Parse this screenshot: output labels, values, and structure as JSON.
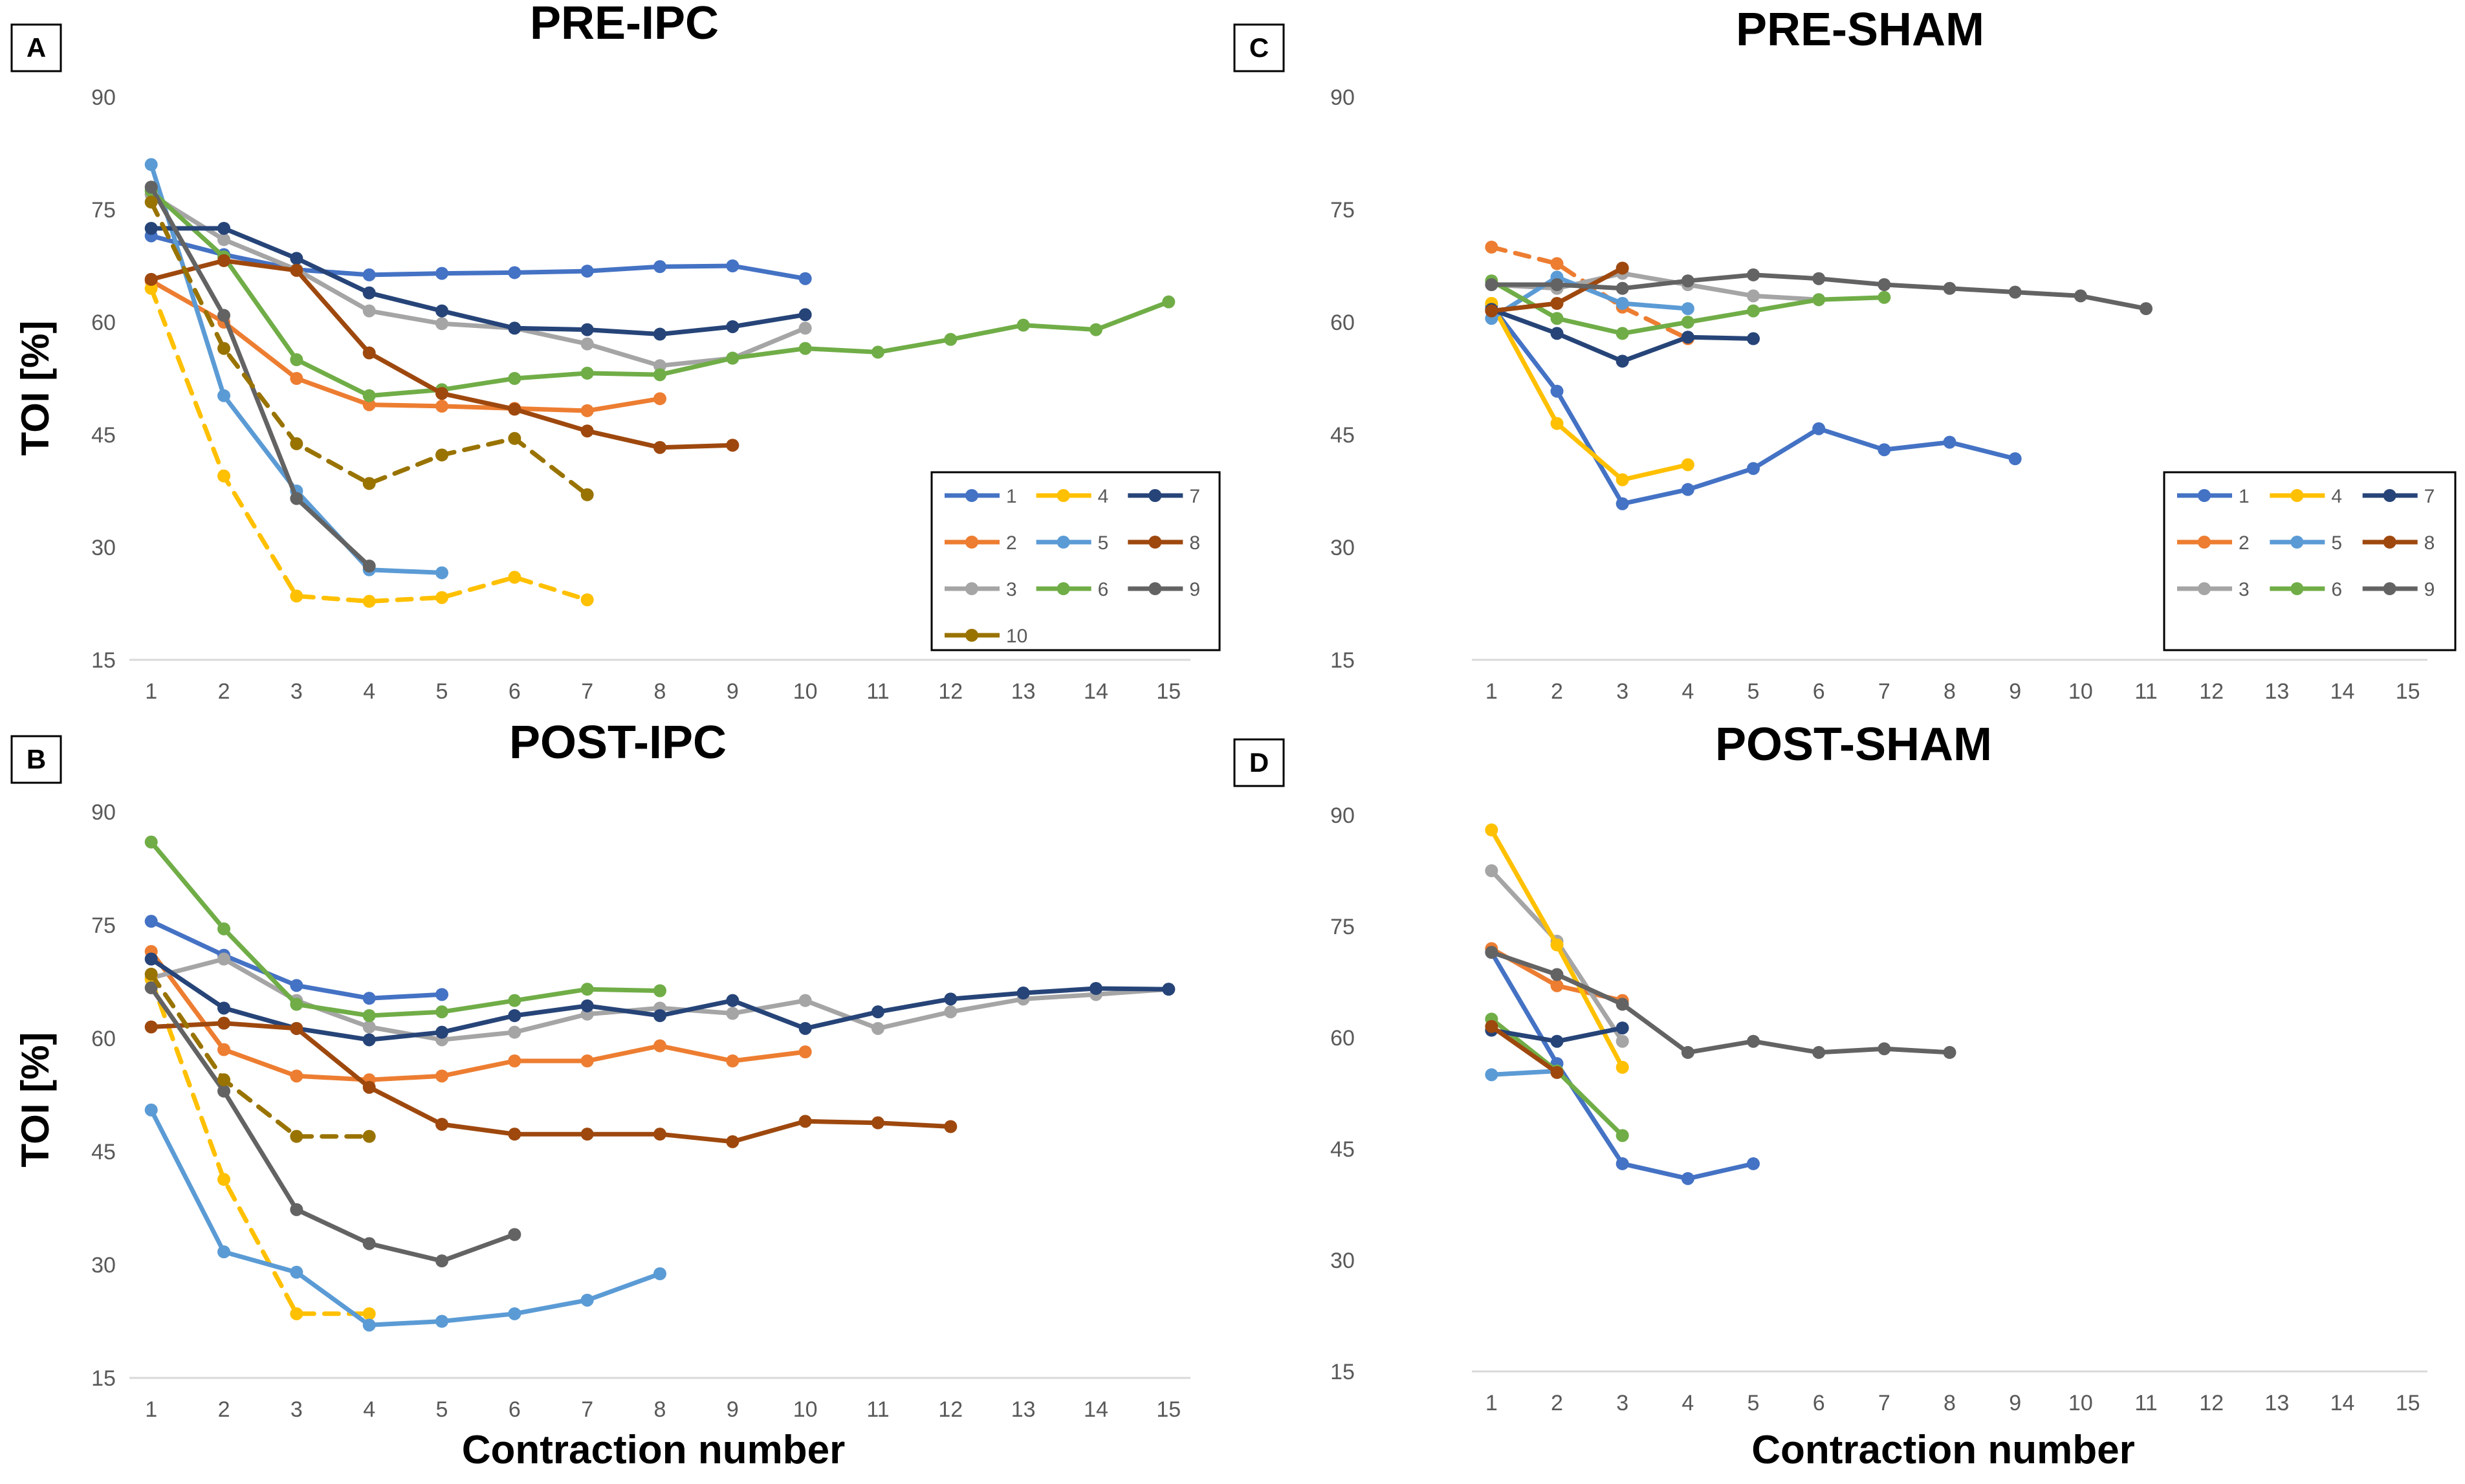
{
  "series_styles": [
    {
      "name": "1",
      "color": "#4472C4",
      "dash": false
    },
    {
      "name": "2",
      "color": "#ED7D31",
      "dash": false
    },
    {
      "name": "3",
      "color": "#A5A5A5",
      "dash": false
    },
    {
      "name": "4",
      "color": "#FFC000",
      "dash": false
    },
    {
      "name": "5",
      "color": "#5B9BD5",
      "dash": false
    },
    {
      "name": "6",
      "color": "#70AD47",
      "dash": false
    },
    {
      "name": "7",
      "color": "#264478",
      "dash": false
    },
    {
      "name": "8",
      "color": "#9E480E",
      "dash": false
    },
    {
      "name": "9",
      "color": "#636363",
      "dash": false
    },
    {
      "name": "10",
      "color": "#997300",
      "dash": false
    }
  ],
  "chart_data": [
    {
      "panel": "A",
      "type": "line",
      "title": "PRE-IPC",
      "xlabel": "",
      "ylabel": "TOI [%]",
      "ylim": [
        15,
        90
      ],
      "yticks": [
        "15",
        "30",
        "45",
        "60",
        "75",
        "90"
      ],
      "xticks": [
        "1",
        "2",
        "3",
        "4",
        "5",
        "6",
        "7",
        "8",
        "9",
        "10",
        "11",
        "12",
        "13",
        "14",
        "15"
      ],
      "legend": [
        "1",
        "4",
        "7",
        "2",
        "5",
        "8",
        "3",
        "6",
        "9",
        "10"
      ],
      "series": [
        {
          "name": "1",
          "values": [
            71.5,
            69,
            67,
            66.3,
            66.5,
            66.6,
            66.8,
            67.4,
            67.5,
            65.8
          ]
        },
        {
          "name": "2",
          "values": [
            65.5,
            60,
            52.5,
            49,
            48.8,
            48.5,
            48.2,
            49.8
          ]
        },
        {
          "name": "3",
          "values": [
            77,
            71,
            67,
            61.5,
            59.8,
            59.2,
            57.1,
            54.2,
            55.2,
            59.2
          ]
        },
        {
          "name": "4",
          "values": [
            64.5,
            39.5,
            23.5,
            22.8,
            23.3,
            26,
            23
          ],
          "dash": true
        },
        {
          "name": "5",
          "values": [
            81,
            50.2,
            37.5,
            27,
            26.6
          ]
        },
        {
          "name": "6",
          "values": [
            77.5,
            68.7,
            55,
            50.2,
            51,
            52.5,
            53.2,
            53,
            55.2,
            56.5,
            56,
            57.7,
            59.6,
            59,
            62.7
          ]
        },
        {
          "name": "7",
          "values": [
            72.5,
            72.5,
            68.5,
            63.9,
            61.5,
            59.2,
            59,
            58.4,
            59.4,
            61
          ]
        },
        {
          "name": "8",
          "values": [
            65.7,
            68.2,
            66.9,
            55.9,
            50.5,
            48.4,
            45.5,
            43.3,
            43.6
          ]
        },
        {
          "name": "9",
          "values": [
            78,
            60.9,
            36.5,
            27.5
          ]
        },
        {
          "name": "10",
          "values": [
            76,
            56.5,
            43.8,
            38.5,
            42.3,
            44.5,
            37
          ],
          "dash": true
        }
      ]
    },
    {
      "panel": "B",
      "type": "line",
      "title": "POST-IPC",
      "xlabel": "Contraction number",
      "ylabel": "TOI [%]",
      "ylim": [
        15,
        90
      ],
      "yticks": [
        "15",
        "30",
        "45",
        "60",
        "75",
        "90"
      ],
      "xticks": [
        "1",
        "2",
        "3",
        "4",
        "5",
        "6",
        "7",
        "8",
        "9",
        "10",
        "11",
        "12",
        "13",
        "14",
        "15"
      ],
      "series": [
        {
          "name": "1",
          "values": [
            75.5,
            71,
            67,
            65.3,
            65.8
          ]
        },
        {
          "name": "2",
          "values": [
            71.5,
            58.5,
            55,
            54.5,
            55,
            57,
            57,
            59,
            57,
            58.2
          ]
        },
        {
          "name": "3",
          "values": [
            68,
            70.5,
            65,
            61.5,
            59.8,
            60.8,
            63.2,
            64,
            63.3,
            65,
            61.3,
            63.5,
            65.2,
            65.8,
            66.5
          ]
        },
        {
          "name": "4",
          "values": [
            67.8,
            41.3,
            23.5,
            23.5
          ],
          "dash": true
        },
        {
          "name": "5",
          "values": [
            50.5,
            31.7,
            29,
            22,
            22.5,
            23.5,
            25.3,
            28.8
          ]
        },
        {
          "name": "6",
          "values": [
            86,
            74.5,
            64.5,
            63,
            63.5,
            65,
            66.5,
            66.3
          ]
        },
        {
          "name": "7",
          "values": [
            70.5,
            64,
            61.3,
            59.8,
            60.8,
            63,
            64.3,
            63,
            65,
            61.3,
            63.5,
            65.2,
            66,
            66.6,
            66.5
          ]
        },
        {
          "name": "8",
          "values": [
            61.5,
            62,
            61.3,
            53.5,
            48.6,
            47.3,
            47.3,
            47.3,
            46.3,
            49,
            48.8,
            48.3
          ]
        },
        {
          "name": "9",
          "values": [
            66.7,
            53,
            37.3,
            32.8,
            30.5,
            34
          ]
        },
        {
          "name": "10",
          "values": [
            68.5,
            54.5,
            47,
            47
          ],
          "dash": true
        }
      ]
    },
    {
      "panel": "C",
      "type": "line",
      "title": "PRE-SHAM",
      "xlabel": "",
      "ylabel": "",
      "ylim": [
        15,
        90
      ],
      "yticks": [
        "15",
        "30",
        "45",
        "60",
        "75",
        "90"
      ],
      "xticks": [
        "1",
        "2",
        "3",
        "4",
        "5",
        "6",
        "7",
        "8",
        "9",
        "10",
        "11",
        "12",
        "13",
        "14",
        "15"
      ],
      "legend": [
        "1",
        "4",
        "7",
        "2",
        "5",
        "8",
        "3",
        "6",
        "9"
      ],
      "series": [
        {
          "name": "1",
          "values": [
            62.2,
            50.8,
            35.8,
            37.7,
            40.5,
            45.8,
            43,
            44,
            41.8
          ]
        },
        {
          "name": "2",
          "values": [
            70,
            67.8,
            62,
            57.8
          ],
          "dash": true
        },
        {
          "name": "3",
          "values": [
            65,
            64.5,
            66.5,
            65,
            63.5,
            63
          ]
        },
        {
          "name": "4",
          "values": [
            62.5,
            46.5,
            39,
            41
          ]
        },
        {
          "name": "5",
          "values": [
            60.5,
            66,
            62.5,
            61.8
          ]
        },
        {
          "name": "6",
          "values": [
            65.5,
            60.5,
            58.5,
            60,
            61.5,
            63,
            63.3
          ]
        },
        {
          "name": "7",
          "values": [
            61.7,
            58.5,
            54.8,
            58,
            57.8
          ]
        },
        {
          "name": "8",
          "values": [
            61.5,
            62.5,
            67.2
          ]
        },
        {
          "name": "9",
          "values": [
            65,
            65,
            64.5,
            65.5,
            66.3,
            65.8,
            65,
            64.5,
            64,
            63.5,
            61.8
          ]
        }
      ]
    },
    {
      "panel": "D",
      "type": "line",
      "title": "POST-SHAM",
      "xlabel": "Contraction number",
      "ylabel": "",
      "ylim": [
        15,
        90
      ],
      "yticks": [
        "15",
        "30",
        "45",
        "60",
        "75",
        "90"
      ],
      "xticks": [
        "1",
        "2",
        "3",
        "4",
        "5",
        "6",
        "7",
        "8",
        "9",
        "10",
        "11",
        "12",
        "13",
        "14",
        "15"
      ],
      "series": [
        {
          "name": "1",
          "values": [
            71.5,
            56.5,
            43,
            41,
            43
          ]
        },
        {
          "name": "2",
          "values": [
            72,
            67,
            65
          ]
        },
        {
          "name": "3",
          "values": [
            82.5,
            73,
            59.5
          ]
        },
        {
          "name": "4",
          "values": [
            88,
            72.5,
            56
          ]
        },
        {
          "name": "5",
          "values": [
            55,
            55.5
          ]
        },
        {
          "name": "6",
          "values": [
            62.5,
            55.5,
            46.8
          ]
        },
        {
          "name": "7",
          "values": [
            61,
            59.5,
            61.3
          ]
        },
        {
          "name": "8",
          "values": [
            61.5,
            55.3
          ]
        },
        {
          "name": "9",
          "values": [
            71.5,
            68.5,
            64.5,
            58,
            59.5,
            58,
            58.5,
            58
          ]
        }
      ]
    }
  ]
}
